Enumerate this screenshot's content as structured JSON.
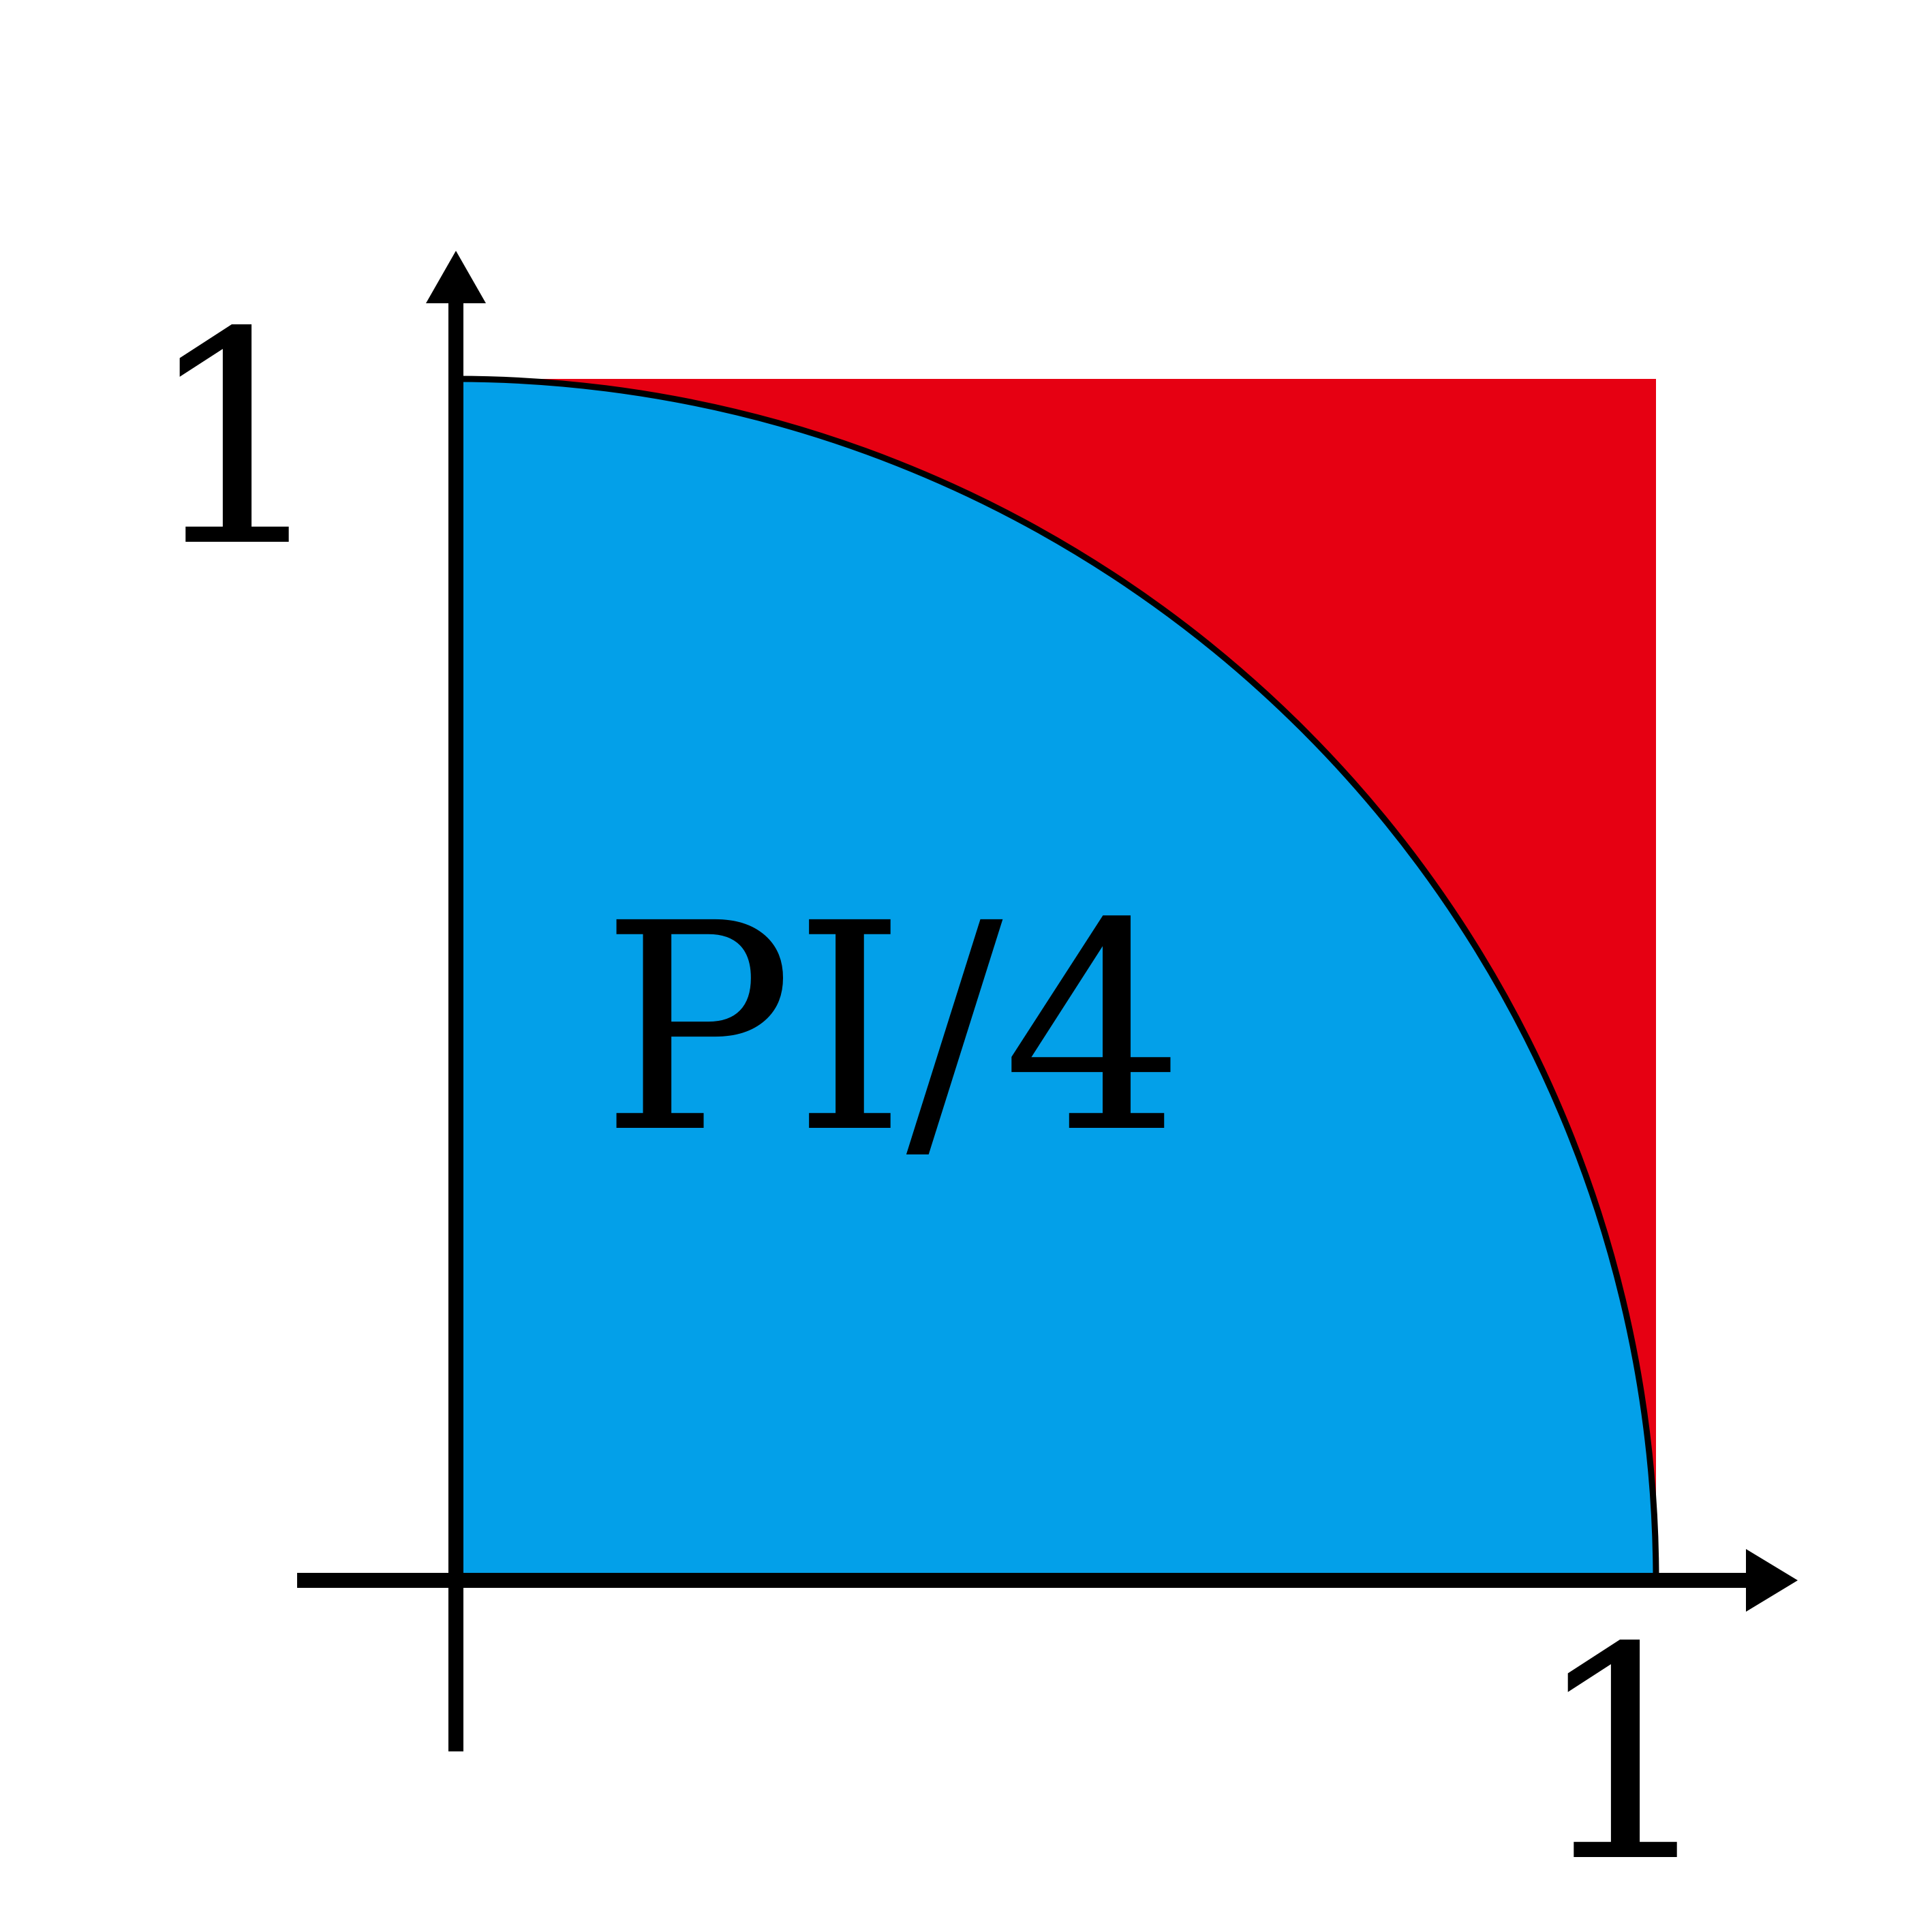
{
  "diagram": {
    "area_label": "PI/4",
    "x_axis_tick_label": "1",
    "y_axis_tick_label": "1"
  },
  "colors": {
    "background": "#ffffff",
    "square_fill": "#e60012",
    "quarter_circle_fill": "#03a0e9",
    "axes_and_outline": "#000000"
  }
}
